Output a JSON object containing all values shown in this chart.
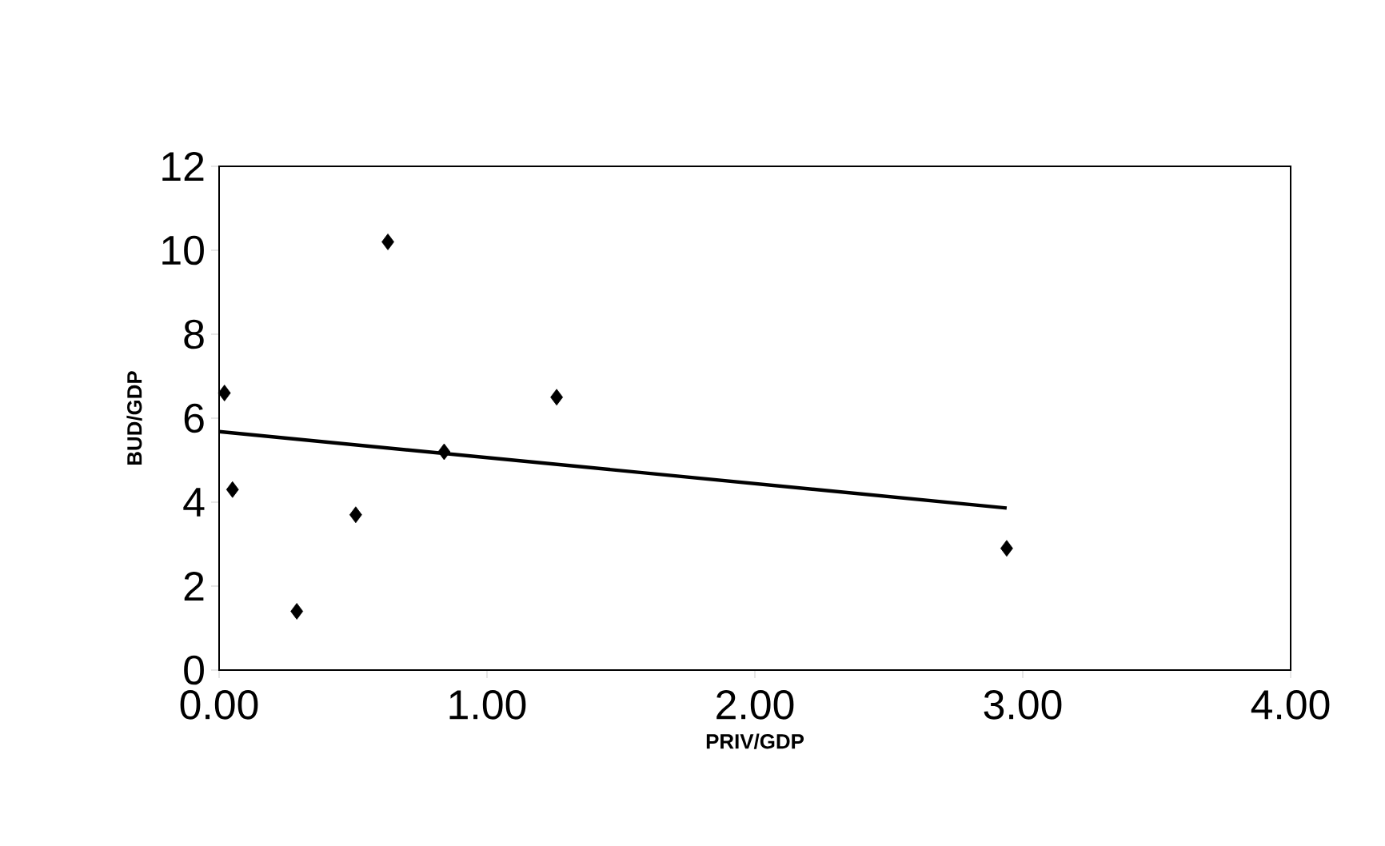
{
  "chart_data": {
    "type": "scatter",
    "xlabel": "PRIV/GDP",
    "ylabel": "BUD/GDP",
    "xlim": [
      0,
      4
    ],
    "ylim": [
      0,
      12
    ],
    "xticks": [
      {
        "value": 0,
        "label": "0.00"
      },
      {
        "value": 1,
        "label": "1.00"
      },
      {
        "value": 2,
        "label": "2.00"
      },
      {
        "value": 3,
        "label": "3.00"
      },
      {
        "value": 4,
        "label": "4.00"
      }
    ],
    "yticks": [
      0,
      2,
      4,
      6,
      8,
      10,
      12
    ],
    "series": [
      {
        "marker": "diamond",
        "color": "#000000",
        "x": [
          0.02,
          0.05,
          0.29,
          0.51,
          0.63,
          0.84,
          1.26,
          2.94
        ],
        "values": [
          6.6,
          4.3,
          1.4,
          3.7,
          10.2,
          5.2,
          6.5,
          2.9
        ]
      },
      {
        "type": "line",
        "marker": "none",
        "line_style": "solid",
        "color": "#000000",
        "x": [
          0,
          2.94
        ],
        "values": [
          5.68,
          3.86
        ]
      }
    ]
  }
}
